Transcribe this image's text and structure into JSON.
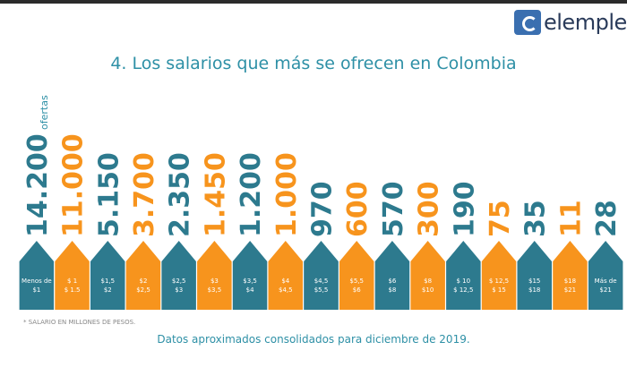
{
  "brand": {
    "name": "elempleo"
  },
  "colors": {
    "teal": "#2d7a8e",
    "orange": "#f7941d",
    "title": "#2e90a6",
    "label": "#ffffff"
  },
  "chart_data": {
    "type": "bar",
    "title": "4. Los salarios que más se ofrecen en Colombia",
    "value_unit": "ofertas",
    "note": "* SALARIO EN MILLONES DE PESOS.",
    "footer": "Datos aproximados consolidados para diciembre de 2019.",
    "categories": [
      {
        "label": [
          "Menos de",
          "$1"
        ],
        "color": "teal"
      },
      {
        "label": [
          "$ 1",
          "$ 1.5"
        ],
        "color": "orange"
      },
      {
        "label": [
          "$1,5",
          "$2"
        ],
        "color": "teal"
      },
      {
        "label": [
          "$2",
          "$2,5"
        ],
        "color": "orange"
      },
      {
        "label": [
          "$2,5",
          "$3"
        ],
        "color": "teal"
      },
      {
        "label": [
          "$3",
          "$3,5"
        ],
        "color": "orange"
      },
      {
        "label": [
          "$3,5",
          "$4"
        ],
        "color": "teal"
      },
      {
        "label": [
          "$4",
          "$4,5"
        ],
        "color": "orange"
      },
      {
        "label": [
          "$4,5",
          "$5,5"
        ],
        "color": "teal"
      },
      {
        "label": [
          "$5,5",
          "$6"
        ],
        "color": "orange"
      },
      {
        "label": [
          "$6",
          "$8"
        ],
        "color": "teal"
      },
      {
        "label": [
          "$8",
          "$10"
        ],
        "color": "orange"
      },
      {
        "label": [
          "$ 10",
          "$ 12,5"
        ],
        "color": "teal"
      },
      {
        "label": [
          "$ 12,5",
          "$ 15"
        ],
        "color": "orange"
      },
      {
        "label": [
          "$15",
          "$18"
        ],
        "color": "teal"
      },
      {
        "label": [
          "$18",
          "$21"
        ],
        "color": "orange"
      },
      {
        "label": [
          "Más de",
          "$21"
        ],
        "color": "teal"
      }
    ],
    "value_labels": [
      "14.200",
      "11.000",
      "5.150",
      "3.700",
      "2.350",
      "1.450",
      "1.200",
      "1.000",
      "970",
      "600",
      "570",
      "300",
      "190",
      "75",
      "35",
      "11",
      "28"
    ],
    "values": [
      14200,
      11000,
      5150,
      3700,
      2350,
      1450,
      1200,
      1000,
      970,
      600,
      570,
      300,
      190,
      75,
      35,
      11,
      28
    ]
  }
}
